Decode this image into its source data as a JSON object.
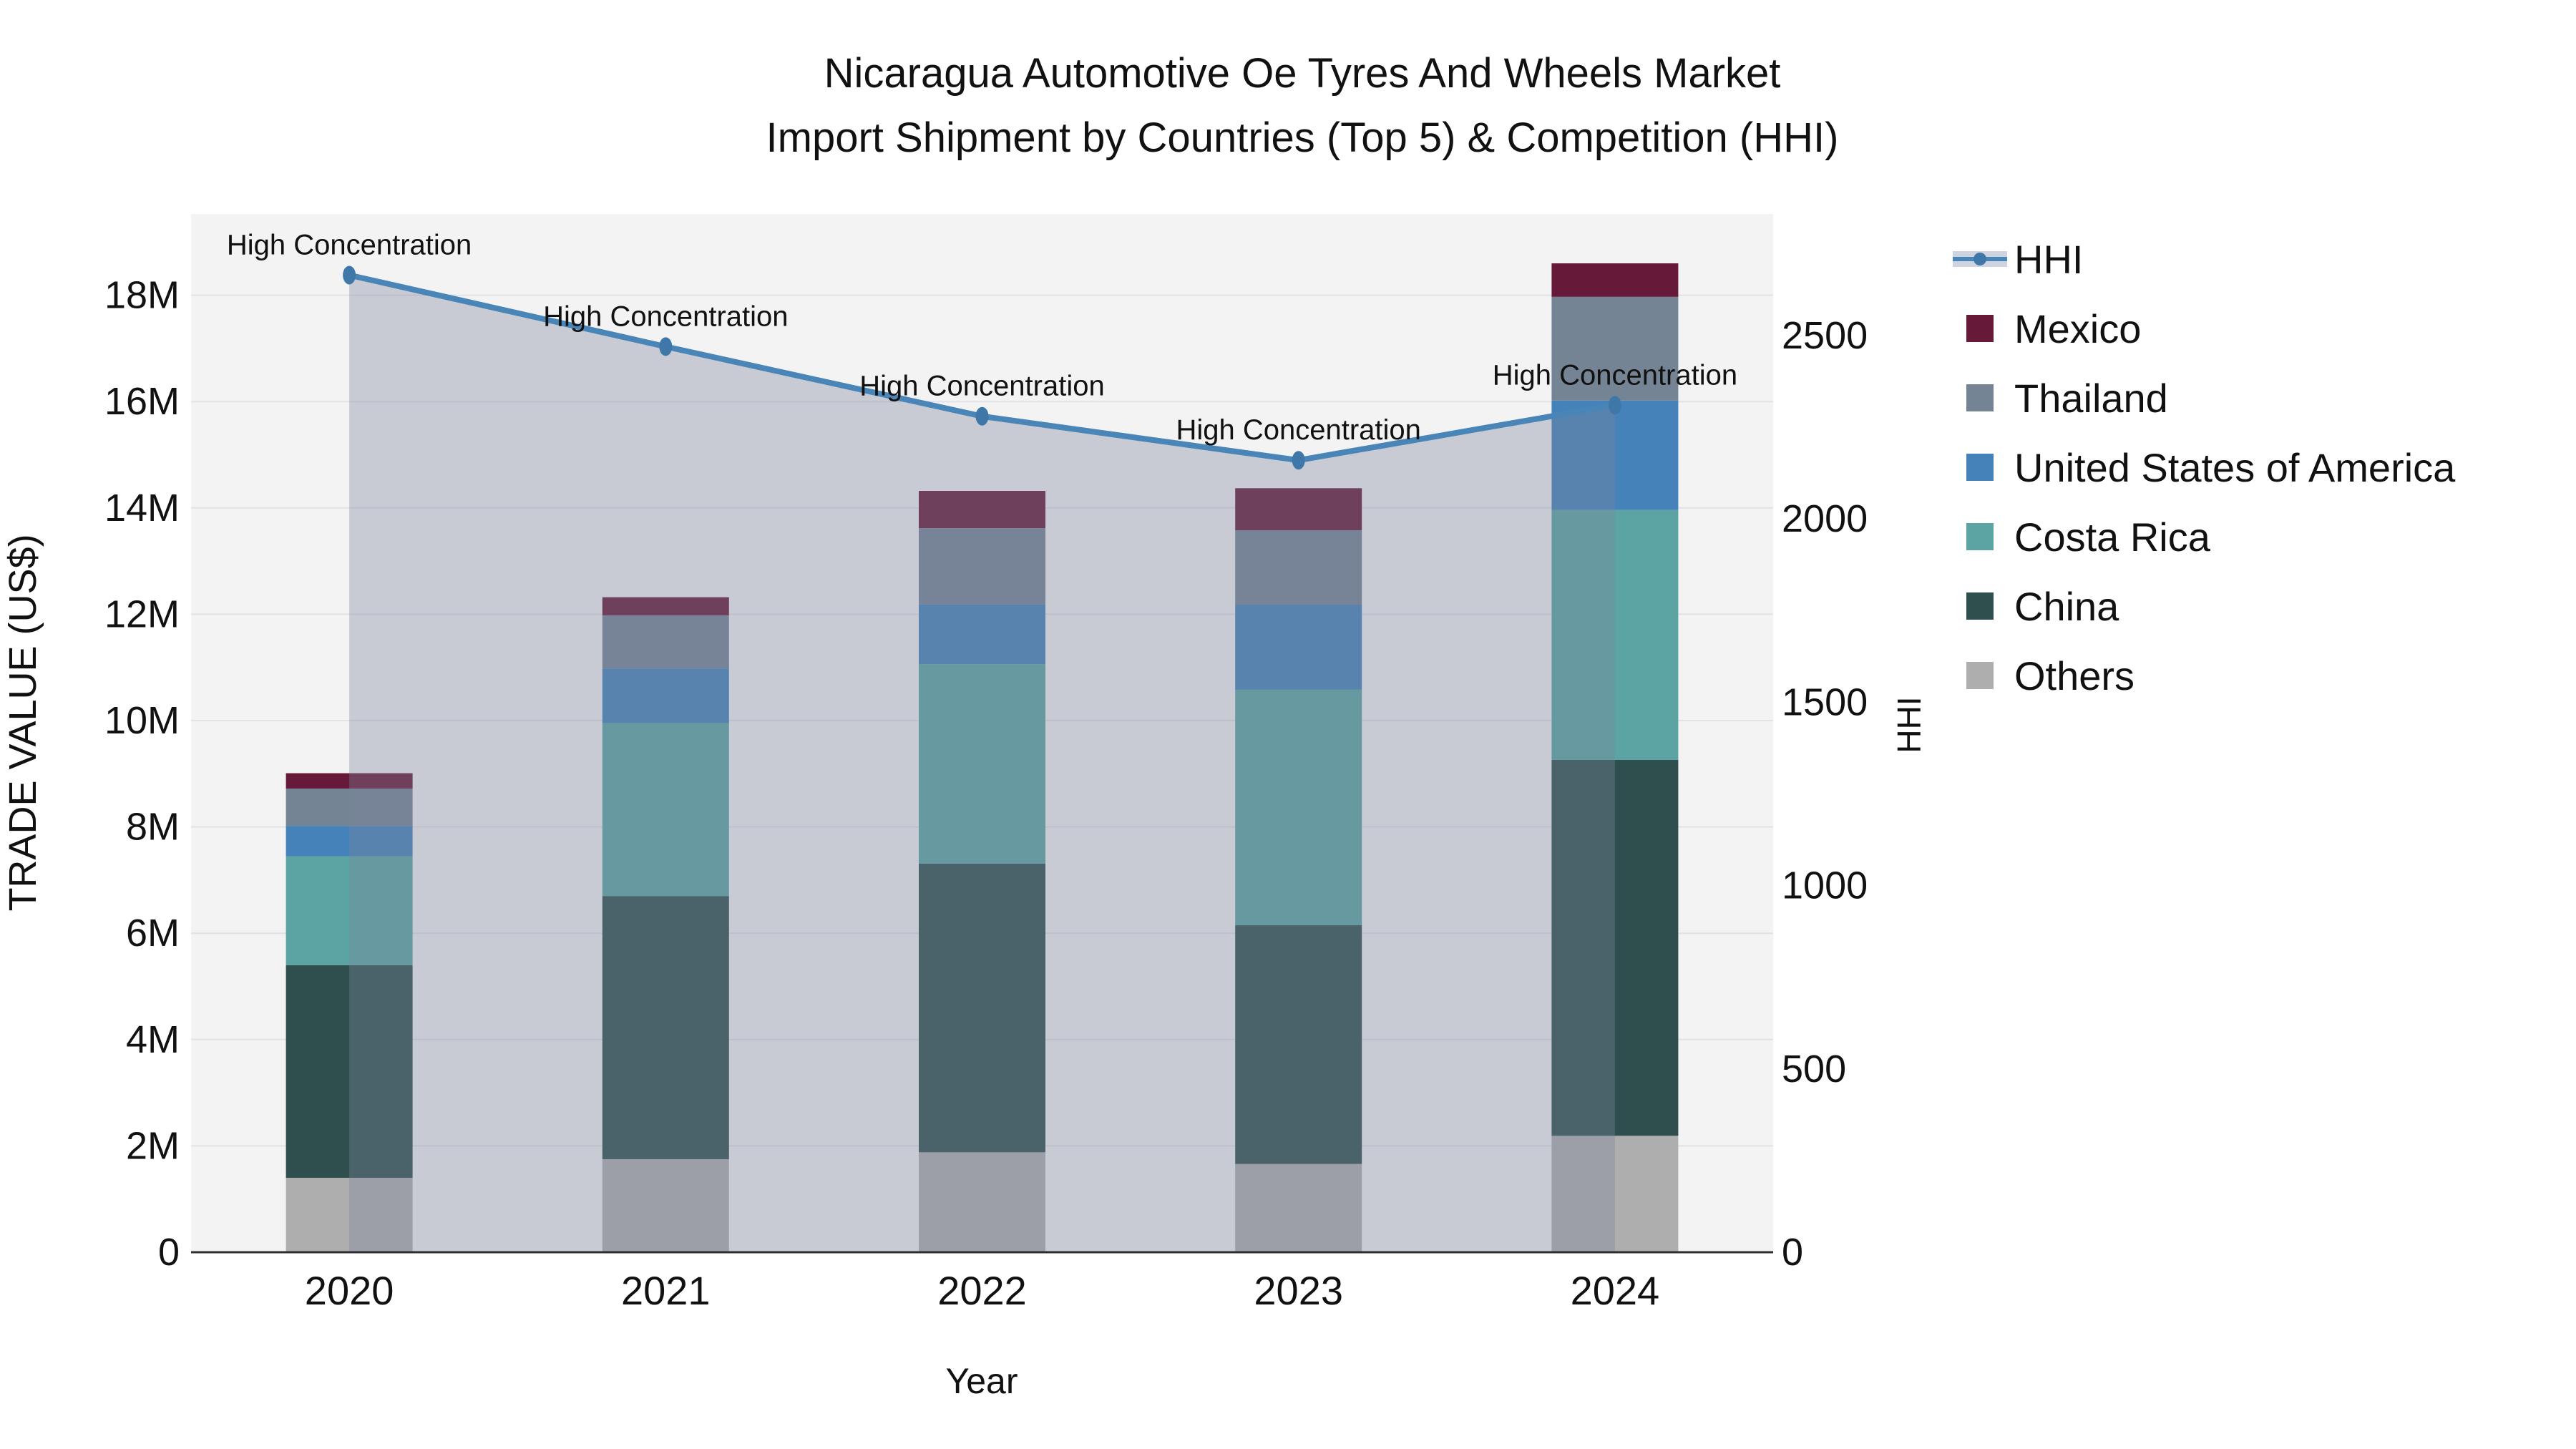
{
  "chart_data": {
    "type": "combo-stacked-bar-line",
    "title_line1": "Nicaragua Automotive Oe Tyres And Wheels Market",
    "title_line2": "Import Shipment by Countries (Top 5) & Competition (HHI)",
    "xlabel": "Year",
    "ylabel_left": "TRADE VALUE (US$)",
    "ylabel_right": "HHI",
    "categories": [
      "2020",
      "2021",
      "2022",
      "2023",
      "2024"
    ],
    "values_unit": "millions of US$ trade value",
    "series": [
      {
        "name": "Others",
        "color": "#aeaeae",
        "values": [
          1.4,
          1.75,
          1.88,
          1.66,
          2.19
        ]
      },
      {
        "name": "China",
        "color": "#2e4f4e",
        "values": [
          4.0,
          4.95,
          5.43,
          4.49,
          7.07
        ]
      },
      {
        "name": "Costa Rica",
        "color": "#5ca4a4",
        "values": [
          2.05,
          3.25,
          3.75,
          4.43,
          4.7
        ]
      },
      {
        "name": "United States of America",
        "color": "#4682ba",
        "values": [
          0.57,
          1.03,
          1.13,
          1.6,
          2.06
        ]
      },
      {
        "name": "Thailand",
        "color": "#748495",
        "values": [
          0.7,
          1.0,
          1.43,
          1.4,
          1.95
        ]
      },
      {
        "name": "Mexico",
        "color": "#661939",
        "values": [
          0.29,
          0.34,
          0.7,
          0.79,
          0.63
        ]
      }
    ],
    "stack_totals": [
      9.01,
      12.32,
      14.32,
      14.37,
      18.6
    ],
    "line_series": {
      "name": "HHI",
      "axis": "right",
      "color": "#4a85b8",
      "area_fill": true,
      "values": [
        2665,
        2470,
        2280,
        2160,
        2310
      ]
    },
    "annotations": [
      "High Concentration",
      "High Concentration",
      "High Concentration",
      "High Concentration",
      "High Concentration"
    ],
    "axes": {
      "left": {
        "ticks": [
          "0",
          "2M",
          "4M",
          "6M",
          "8M",
          "10M",
          "12M",
          "14M",
          "16M",
          "18M"
        ],
        "tick_values": [
          0,
          2,
          4,
          6,
          8,
          10,
          12,
          14,
          16,
          18
        ],
        "range": [
          0,
          19.5
        ]
      },
      "right": {
        "ticks": [
          "0",
          "500",
          "1000",
          "1500",
          "2000",
          "2500"
        ],
        "tick_values": [
          0,
          500,
          1000,
          1500,
          2000,
          2500
        ],
        "range": [
          0,
          2830
        ]
      },
      "grid": "horizontal"
    },
    "legend": {
      "position": "right",
      "entries": [
        {
          "label": "HHI",
          "type": "line"
        },
        {
          "label": "Mexico",
          "type": "patch"
        },
        {
          "label": "Thailand",
          "type": "patch"
        },
        {
          "label": "United States of America",
          "type": "patch"
        },
        {
          "label": "Costa Rica",
          "type": "patch"
        },
        {
          "label": "China",
          "type": "patch"
        },
        {
          "label": "Others",
          "type": "patch"
        }
      ]
    }
  },
  "colors": {
    "Mexico": "#661939",
    "Thailand": "#748495",
    "United States of America": "#4682ba",
    "Costa Rica": "#5ca4a4",
    "China": "#2e4f4e",
    "Others": "#aeaeae",
    "HHI": "#4a85b8",
    "hhi_marker": "#3f77a8",
    "hhi_area": "rgba(124,134,155,0.36)",
    "plot_bg": "#f3f3f4",
    "grid": "#e2e2e6",
    "axis_line": "#2f2f2f",
    "text": "#111111"
  }
}
